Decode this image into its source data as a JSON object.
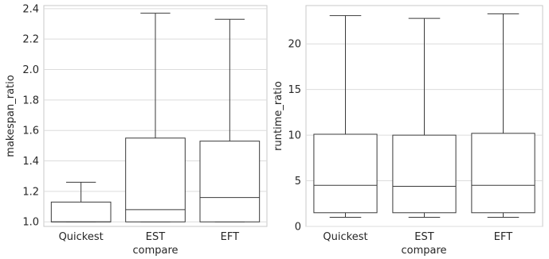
{
  "chart_data": [
    {
      "type": "box",
      "xlabel": "compare",
      "ylabel": "makespan_ratio",
      "categories": [
        "Quickest",
        "EST",
        "EFT"
      ],
      "ylim": [
        0.97,
        2.42
      ],
      "yticks": [
        1.0,
        1.2,
        1.4,
        1.6,
        1.8,
        2.0,
        2.2,
        2.4
      ],
      "ytick_labels": [
        "1.0",
        "1.2",
        "1.4",
        "1.6",
        "1.8",
        "2.0",
        "2.2",
        "2.4"
      ],
      "boxes": [
        {
          "category": "Quickest",
          "whislo": 1.0,
          "q1": 1.0,
          "med": 1.0,
          "q3": 1.13,
          "whishi": 1.26
        },
        {
          "category": "EST",
          "whislo": 1.0,
          "q1": 1.0,
          "med": 1.08,
          "q3": 1.55,
          "whishi": 2.37
        },
        {
          "category": "EFT",
          "whislo": 1.0,
          "q1": 1.0,
          "med": 1.16,
          "q3": 1.53,
          "whishi": 2.33
        }
      ],
      "grid": "horizontal"
    },
    {
      "type": "box",
      "xlabel": "compare",
      "ylabel": "runtime_ratio",
      "categories": [
        "Quickest",
        "EST",
        "EFT"
      ],
      "ylim": [
        0,
        24.2
      ],
      "yticks": [
        0,
        5,
        10,
        15,
        20
      ],
      "ytick_labels": [
        "0",
        "5",
        "10",
        "15",
        "20"
      ],
      "boxes": [
        {
          "category": "Quickest",
          "whislo": 1.0,
          "q1": 1.5,
          "med": 4.5,
          "q3": 10.1,
          "whishi": 23.1
        },
        {
          "category": "EST",
          "whislo": 1.0,
          "q1": 1.5,
          "med": 4.4,
          "q3": 10.0,
          "whishi": 22.8
        },
        {
          "category": "EFT",
          "whislo": 1.0,
          "q1": 1.5,
          "med": 4.5,
          "q3": 10.2,
          "whishi": 23.3
        }
      ],
      "grid": "horizontal"
    }
  ]
}
